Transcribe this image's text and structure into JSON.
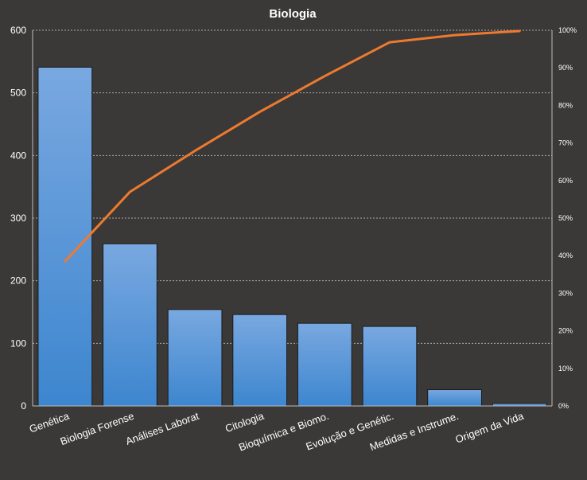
{
  "chart_data": {
    "type": "bar",
    "title": "Biologia",
    "categories": [
      "Genética",
      "Biologia Forense",
      "Análises Laborat",
      "Citologia",
      "Bioquímica e Biomo.",
      "Evolução e Genétic.",
      "Medidas e Instrume.",
      "Origem da Vida"
    ],
    "series": [
      {
        "type": "bar",
        "values": [
          541,
          259,
          154,
          146,
          132,
          127,
          26,
          4
        ]
      },
      {
        "type": "line",
        "axis": "right",
        "values": [
          38.5,
          57.0,
          67.9,
          78.3,
          87.8,
          96.8,
          98.7,
          99.8
        ]
      }
    ],
    "ylim": [
      0,
      600
    ],
    "y_ticks": [
      0,
      100,
      200,
      300,
      400,
      500,
      600
    ],
    "y2lim": [
      0,
      100
    ],
    "y2_ticks": [
      "0%",
      "10%",
      "20%",
      "30%",
      "40%",
      "50%",
      "60%",
      "70%",
      "80%",
      "90%",
      "100%"
    ],
    "grid": true,
    "legend": "none",
    "colors": {
      "bar_top": "#79a8e0",
      "bar_bottom": "#3d86cf",
      "line": "#ee7a2f",
      "background": "#3a3938"
    }
  }
}
